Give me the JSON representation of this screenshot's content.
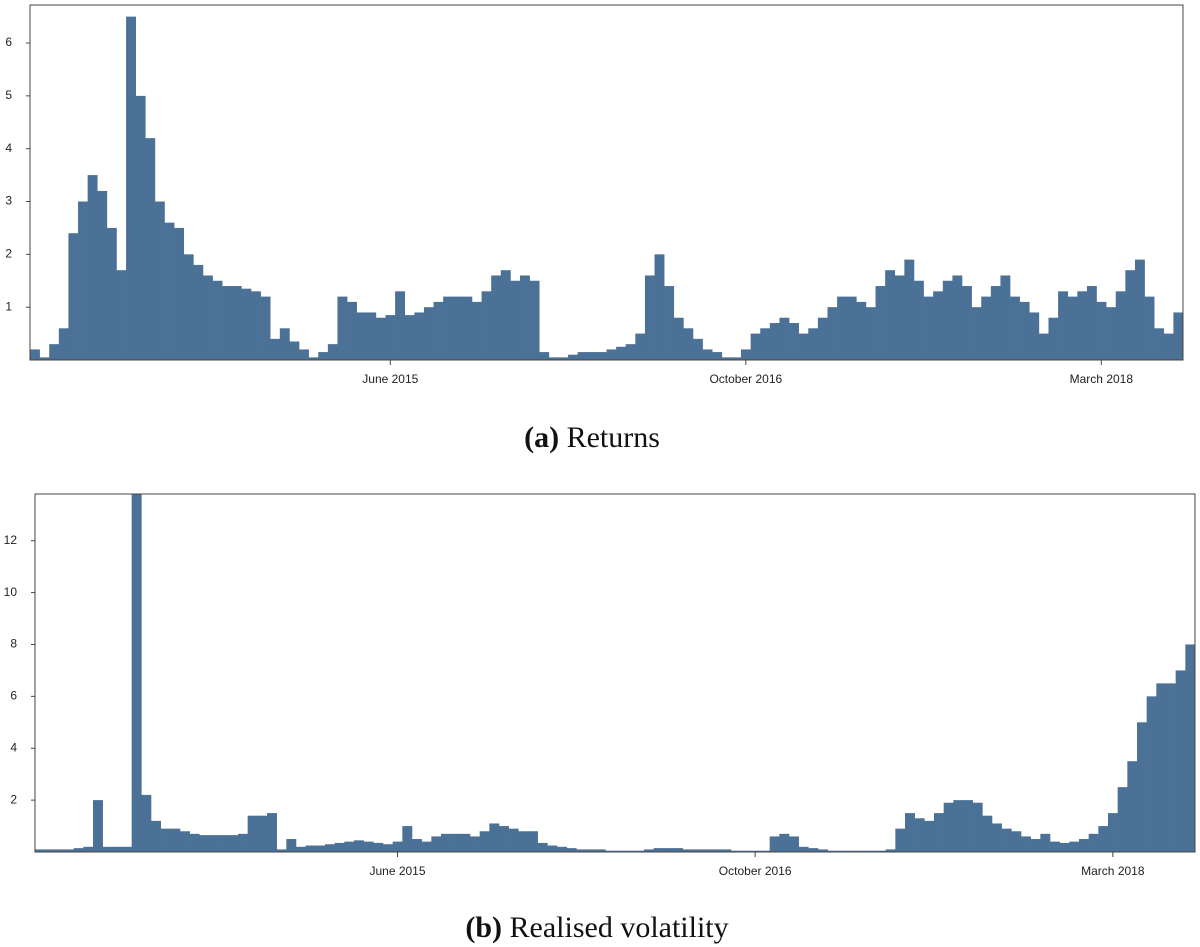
{
  "chart_data": [
    {
      "type": "bar",
      "label": "(a)",
      "title": "Returns",
      "color": "#4b7196",
      "categories": [
        null,
        null,
        null,
        null,
        null,
        null,
        null,
        null,
        null,
        null,
        null,
        null,
        null,
        null,
        null,
        null,
        null,
        null,
        null,
        null,
        null,
        null,
        null,
        null,
        null,
        null,
        null,
        null,
        null,
        null,
        null,
        null,
        null,
        null,
        null,
        null,
        null,
        "June 2015",
        null,
        null,
        null,
        null,
        null,
        null,
        null,
        null,
        null,
        null,
        null,
        null,
        null,
        null,
        null,
        null,
        null,
        null,
        null,
        null,
        null,
        null,
        null,
        null,
        null,
        null,
        null,
        null,
        null,
        null,
        null,
        null,
        null,
        null,
        null,
        null,
        "October 2016",
        null,
        null,
        null,
        null,
        null,
        null,
        null,
        null,
        null,
        null,
        null,
        null,
        null,
        null,
        null,
        null,
        null,
        null,
        null,
        null,
        null,
        null,
        null,
        null,
        null,
        null,
        null,
        null,
        null,
        null,
        null,
        null,
        null,
        null,
        null,
        null,
        "March 2018",
        null,
        null,
        null,
        null,
        null,
        null,
        null,
        null
      ],
      "values": [
        0.2,
        0.05,
        0.3,
        0.6,
        2.4,
        3.0,
        3.5,
        3.2,
        2.5,
        1.7,
        6.5,
        5.0,
        4.2,
        3.0,
        2.6,
        2.5,
        2.0,
        1.8,
        1.6,
        1.5,
        1.4,
        1.4,
        1.35,
        1.3,
        1.2,
        0.4,
        0.6,
        0.35,
        0.2,
        0.05,
        0.15,
        0.3,
        1.2,
        1.1,
        0.9,
        0.9,
        0.8,
        0.85,
        1.3,
        0.85,
        0.9,
        1.0,
        1.1,
        1.2,
        1.2,
        1.2,
        1.1,
        1.3,
        1.6,
        1.7,
        1.5,
        1.6,
        1.5,
        0.15,
        0.05,
        0.05,
        0.1,
        0.15,
        0.15,
        0.15,
        0.2,
        0.25,
        0.3,
        0.5,
        1.6,
        2.0,
        1.4,
        0.8,
        0.6,
        0.4,
        0.2,
        0.15,
        0.05,
        0.05,
        0.2,
        0.5,
        0.6,
        0.7,
        0.8,
        0.7,
        0.5,
        0.6,
        0.8,
        1.0,
        1.2,
        1.2,
        1.1,
        1.0,
        1.4,
        1.7,
        1.6,
        1.9,
        1.5,
        1.2,
        1.3,
        1.5,
        1.6,
        1.4,
        1.0,
        1.2,
        1.4,
        1.6,
        1.2,
        1.1,
        0.9,
        0.5,
        0.8,
        1.3,
        1.2,
        1.3,
        1.4,
        1.1,
        1.0,
        1.3,
        1.7,
        1.9,
        1.2,
        0.6,
        0.5,
        0.9
      ],
      "ylim": [
        0,
        6.72
      ],
      "yticks": [
        1,
        2,
        3,
        4,
        5,
        6
      ]
    },
    {
      "type": "bar",
      "label": "(b)",
      "title": "Realised volatility",
      "color": "#4b7196",
      "categories": [
        null,
        null,
        null,
        null,
        null,
        null,
        null,
        null,
        null,
        null,
        null,
        null,
        null,
        null,
        null,
        null,
        null,
        null,
        null,
        null,
        null,
        null,
        null,
        null,
        null,
        null,
        null,
        null,
        null,
        null,
        null,
        null,
        null,
        null,
        null,
        null,
        null,
        "June 2015",
        null,
        null,
        null,
        null,
        null,
        null,
        null,
        null,
        null,
        null,
        null,
        null,
        null,
        null,
        null,
        null,
        null,
        null,
        null,
        null,
        null,
        null,
        null,
        null,
        null,
        null,
        null,
        null,
        null,
        null,
        null,
        null,
        null,
        null,
        null,
        null,
        "October 2016",
        null,
        null,
        null,
        null,
        null,
        null,
        null,
        null,
        null,
        null,
        null,
        null,
        null,
        null,
        null,
        null,
        null,
        null,
        null,
        null,
        null,
        null,
        null,
        null,
        null,
        null,
        null,
        null,
        null,
        null,
        null,
        null,
        null,
        null,
        null,
        null,
        "March 2018",
        null,
        null,
        null,
        null,
        null,
        null,
        null,
        null
      ],
      "values": [
        0.1,
        0.1,
        0.1,
        0.1,
        0.15,
        0.2,
        2.0,
        0.2,
        0.2,
        0.2,
        13.8,
        2.2,
        1.2,
        0.9,
        0.9,
        0.8,
        0.7,
        0.65,
        0.65,
        0.65,
        0.65,
        0.7,
        1.4,
        1.4,
        1.5,
        0.1,
        0.5,
        0.2,
        0.25,
        0.25,
        0.3,
        0.35,
        0.4,
        0.45,
        0.4,
        0.35,
        0.3,
        0.4,
        1.0,
        0.5,
        0.4,
        0.6,
        0.7,
        0.7,
        0.7,
        0.6,
        0.8,
        1.1,
        1.0,
        0.9,
        0.8,
        0.8,
        0.35,
        0.25,
        0.2,
        0.15,
        0.1,
        0.1,
        0.1,
        0.05,
        0.05,
        0.05,
        0.05,
        0.1,
        0.15,
        0.15,
        0.15,
        0.1,
        0.1,
        0.1,
        0.1,
        0.1,
        0.05,
        0.05,
        0.05,
        0.05,
        0.6,
        0.7,
        0.6,
        0.2,
        0.15,
        0.1,
        0.05,
        0.05,
        0.05,
        0.05,
        0.05,
        0.05,
        0.1,
        0.9,
        1.5,
        1.3,
        1.2,
        1.5,
        1.9,
        2.0,
        2.0,
        1.9,
        1.4,
        1.1,
        0.9,
        0.8,
        0.6,
        0.5,
        0.7,
        0.4,
        0.35,
        0.4,
        0.5,
        0.7,
        1.0,
        1.5,
        2.5,
        3.5,
        5.0,
        6.0,
        6.5,
        6.5,
        7.0,
        8.0
      ],
      "ylim": [
        0,
        13.8
      ],
      "yticks": [
        2,
        4,
        6,
        8,
        10,
        12
      ]
    }
  ]
}
